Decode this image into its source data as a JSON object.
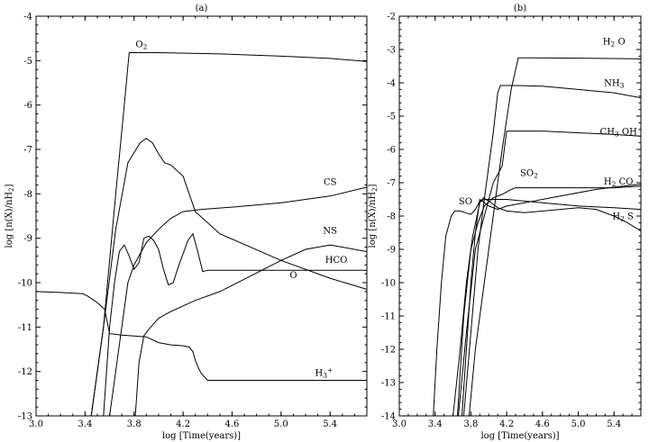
{
  "chart_data": [
    {
      "type": "line",
      "title": "(a)",
      "xlabel": "log [Time(years)]",
      "ylabel": "log [n(X)/n_H2]",
      "xlim": [
        3.0,
        5.7
      ],
      "ylim": [
        -13,
        -4
      ],
      "x_ticks": [
        "3.0",
        "3.4",
        "3.8",
        "4.2",
        "4.6",
        "5.0",
        "5.4"
      ],
      "y_ticks": [
        "-4",
        "-5",
        "-6",
        "-7",
        "-8",
        "-9",
        "-10",
        "-11",
        "-12",
        "-13"
      ],
      "grid": false,
      "legend": "inline labels",
      "series": [
        {
          "name": "O2",
          "x": [
            3.45,
            3.55,
            3.65,
            3.72,
            3.76,
            4.0,
            4.5,
            5.0,
            5.4,
            5.7
          ],
          "y": [
            -13.0,
            -11.0,
            -8.0,
            -6.0,
            -4.82,
            -4.82,
            -4.85,
            -4.9,
            -4.95,
            -5.02
          ]
        },
        {
          "name": "CS",
          "x": [
            3.6,
            3.7,
            3.75,
            3.8,
            3.9,
            4.0,
            4.1,
            4.2,
            4.35,
            4.6,
            5.0,
            5.4,
            5.7
          ],
          "y": [
            -13.0,
            -11.0,
            -10.0,
            -9.6,
            -9.1,
            -8.8,
            -8.55,
            -8.4,
            -8.35,
            -8.3,
            -8.2,
            -8.05,
            -7.85
          ]
        },
        {
          "name": "NS",
          "x": [
            3.45,
            3.55,
            3.65,
            3.75,
            3.85,
            3.9,
            3.95,
            4.0,
            4.05,
            4.1,
            4.2,
            4.3,
            4.5,
            5.0,
            5.4,
            5.7
          ],
          "y": [
            -13.0,
            -11.0,
            -8.8,
            -7.3,
            -6.85,
            -6.75,
            -6.85,
            -7.1,
            -7.3,
            -7.35,
            -7.6,
            -8.4,
            -8.9,
            -9.5,
            -9.9,
            -10.15
          ]
        },
        {
          "name": "HCO",
          "x": [
            3.81,
            3.84,
            3.88,
            3.92,
            4.0,
            4.1,
            4.3,
            4.5,
            5.0,
            5.2,
            5.4,
            5.5,
            5.7
          ],
          "y": [
            -13.0,
            -11.8,
            -11.2,
            -11.05,
            -10.8,
            -10.65,
            -10.4,
            -10.2,
            -9.5,
            -9.25,
            -9.15,
            -9.2,
            -9.3
          ]
        },
        {
          "name": "O",
          "x": [
            3.55,
            3.6,
            3.64,
            3.68,
            3.72,
            3.76,
            3.8,
            3.84,
            3.88,
            3.92,
            3.96,
            4.0,
            4.04,
            4.08,
            4.12,
            4.16,
            4.2,
            4.24,
            4.28,
            4.32,
            4.36,
            4.4,
            4.5,
            5.0,
            5.5,
            5.7
          ],
          "y": [
            -13.0,
            -11.0,
            -10.0,
            -9.3,
            -9.15,
            -9.4,
            -9.7,
            -9.55,
            -9.0,
            -8.95,
            -9.05,
            -9.25,
            -9.7,
            -10.05,
            -10.0,
            -9.65,
            -9.35,
            -9.05,
            -8.9,
            -9.3,
            -9.75,
            -9.72,
            -9.72,
            -9.72,
            -9.72,
            -9.72
          ]
        },
        {
          "name": "H3+",
          "x": [
            3.0,
            3.2,
            3.38,
            3.42,
            3.5,
            3.56,
            3.6,
            3.7,
            3.8,
            3.9,
            4.0,
            4.1,
            4.2,
            4.25,
            4.28,
            4.3,
            4.33,
            4.35,
            4.4,
            4.5,
            5.0,
            5.7
          ],
          "y": [
            -10.2,
            -10.22,
            -10.25,
            -10.3,
            -10.45,
            -10.6,
            -11.15,
            -11.18,
            -11.2,
            -11.22,
            -11.35,
            -11.4,
            -11.42,
            -11.45,
            -11.55,
            -11.75,
            -11.95,
            -12.05,
            -12.2,
            -12.2,
            -12.2,
            -12.2
          ]
        }
      ],
      "labels": [
        {
          "text": "O2",
          "x": 3.86,
          "y": -4.7
        },
        {
          "text": "CS",
          "x": 5.4,
          "y": -7.8
        },
        {
          "text": "NS",
          "x": 5.4,
          "y": -8.9
        },
        {
          "text": "HCO",
          "x": 5.45,
          "y": -9.55
        },
        {
          "text": "O",
          "x": 5.1,
          "y": -9.9
        },
        {
          "text": "H3+",
          "x": 5.35,
          "y": -12.1
        }
      ]
    },
    {
      "type": "line",
      "title": "(b)",
      "xlabel": "log [Time(years)]",
      "ylabel": "log [n(X)/n_H2]",
      "xlim": [
        3.0,
        5.7
      ],
      "ylim": [
        -14,
        -2
      ],
      "x_ticks": [
        "3.0",
        "3.4",
        "3.8",
        "4.2",
        "4.6",
        "5.0",
        "5.4"
      ],
      "y_ticks": [
        "-2",
        "-3",
        "-4",
        "-5",
        "-6",
        "-7",
        "-8",
        "-9",
        "-10",
        "-11",
        "-12",
        "-13",
        "-14"
      ],
      "grid": false,
      "legend": "inline labels",
      "series": [
        {
          "name": "H2 O",
          "x": [
            3.78,
            3.85,
            3.95,
            4.05,
            4.15,
            4.25,
            4.33,
            4.5,
            5.0,
            5.7
          ],
          "y": [
            -14.0,
            -12.0,
            -10.0,
            -8.0,
            -6.0,
            -4.2,
            -3.25,
            -3.25,
            -3.26,
            -3.28
          ]
        },
        {
          "name": "NH3",
          "x": [
            3.72,
            3.8,
            3.88,
            3.95,
            4.05,
            4.1,
            4.13,
            4.3,
            4.6,
            5.0,
            5.4,
            5.7
          ],
          "y": [
            -14.0,
            -11.5,
            -9.0,
            -7.5,
            -5.5,
            -4.3,
            -4.08,
            -4.08,
            -4.1,
            -4.2,
            -4.3,
            -4.45
          ]
        },
        {
          "name": "CH3 OH",
          "x": [
            3.66,
            3.75,
            3.85,
            3.95,
            4.05,
            4.15,
            4.2,
            4.3,
            4.6,
            5.0,
            5.4,
            5.7
          ],
          "y": [
            -14.0,
            -11.5,
            -9.0,
            -8.0,
            -7.0,
            -6.5,
            -5.45,
            -5.45,
            -5.45,
            -5.5,
            -5.55,
            -5.6
          ]
        },
        {
          "name": "SO2",
          "x": [
            3.65,
            3.72,
            3.8,
            3.88,
            3.95,
            4.05,
            4.15,
            4.25,
            4.3,
            4.5,
            5.0,
            5.4,
            5.7
          ],
          "y": [
            -14.0,
            -11.0,
            -9.0,
            -8.2,
            -7.7,
            -7.45,
            -7.35,
            -7.2,
            -7.15,
            -7.15,
            -7.15,
            -7.15,
            -7.1
          ]
        },
        {
          "name": "H2 CO",
          "x": [
            3.7,
            3.75,
            3.8,
            3.85,
            3.9,
            4.0,
            4.1,
            4.2,
            4.4,
            4.8,
            5.2,
            5.5,
            5.7
          ],
          "y": [
            -14.0,
            -12.0,
            -10.0,
            -8.5,
            -7.5,
            -7.7,
            -7.8,
            -7.7,
            -7.6,
            -7.4,
            -7.2,
            -7.1,
            -7.05
          ]
        },
        {
          "name": "SO",
          "x": [
            3.38,
            3.42,
            3.47,
            3.52,
            3.58,
            3.62,
            3.68,
            3.74,
            3.8,
            3.85,
            3.9,
            3.95,
            4.0,
            4.2,
            4.6,
            5.0,
            5.4,
            5.7
          ],
          "y": [
            -14.0,
            -12.0,
            -10.0,
            -8.6,
            -8.0,
            -7.85,
            -7.85,
            -7.9,
            -7.95,
            -7.8,
            -7.55,
            -7.5,
            -7.5,
            -7.5,
            -7.6,
            -7.7,
            -7.75,
            -7.8
          ]
        },
        {
          "name": "H2 S",
          "x": [
            3.6,
            3.68,
            3.75,
            3.82,
            3.86,
            3.9,
            3.94,
            4.0,
            4.1,
            4.2,
            4.4,
            4.8,
            5.0,
            5.2,
            5.4,
            5.55,
            5.7
          ],
          "y": [
            -14.0,
            -12.0,
            -10.0,
            -8.6,
            -8.1,
            -7.6,
            -7.45,
            -7.55,
            -7.75,
            -7.85,
            -7.9,
            -7.8,
            -7.75,
            -7.8,
            -8.0,
            -8.2,
            -8.45
          ]
        }
      ],
      "labels": [
        {
          "text": "H2 O",
          "x": 5.4,
          "y": -2.85
        },
        {
          "text": "NH3",
          "x": 5.4,
          "y": -4.1
        },
        {
          "text": "CH3 OH",
          "x": 5.45,
          "y": -5.55
        },
        {
          "text": "SO2",
          "x": 4.45,
          "y": -6.8
        },
        {
          "text": "H2 CO",
          "x": 5.45,
          "y": -7.05
        },
        {
          "text": "SO",
          "x": 3.74,
          "y": -7.65
        },
        {
          "text": "H2 S",
          "x": 5.5,
          "y": -8.1
        }
      ]
    }
  ]
}
